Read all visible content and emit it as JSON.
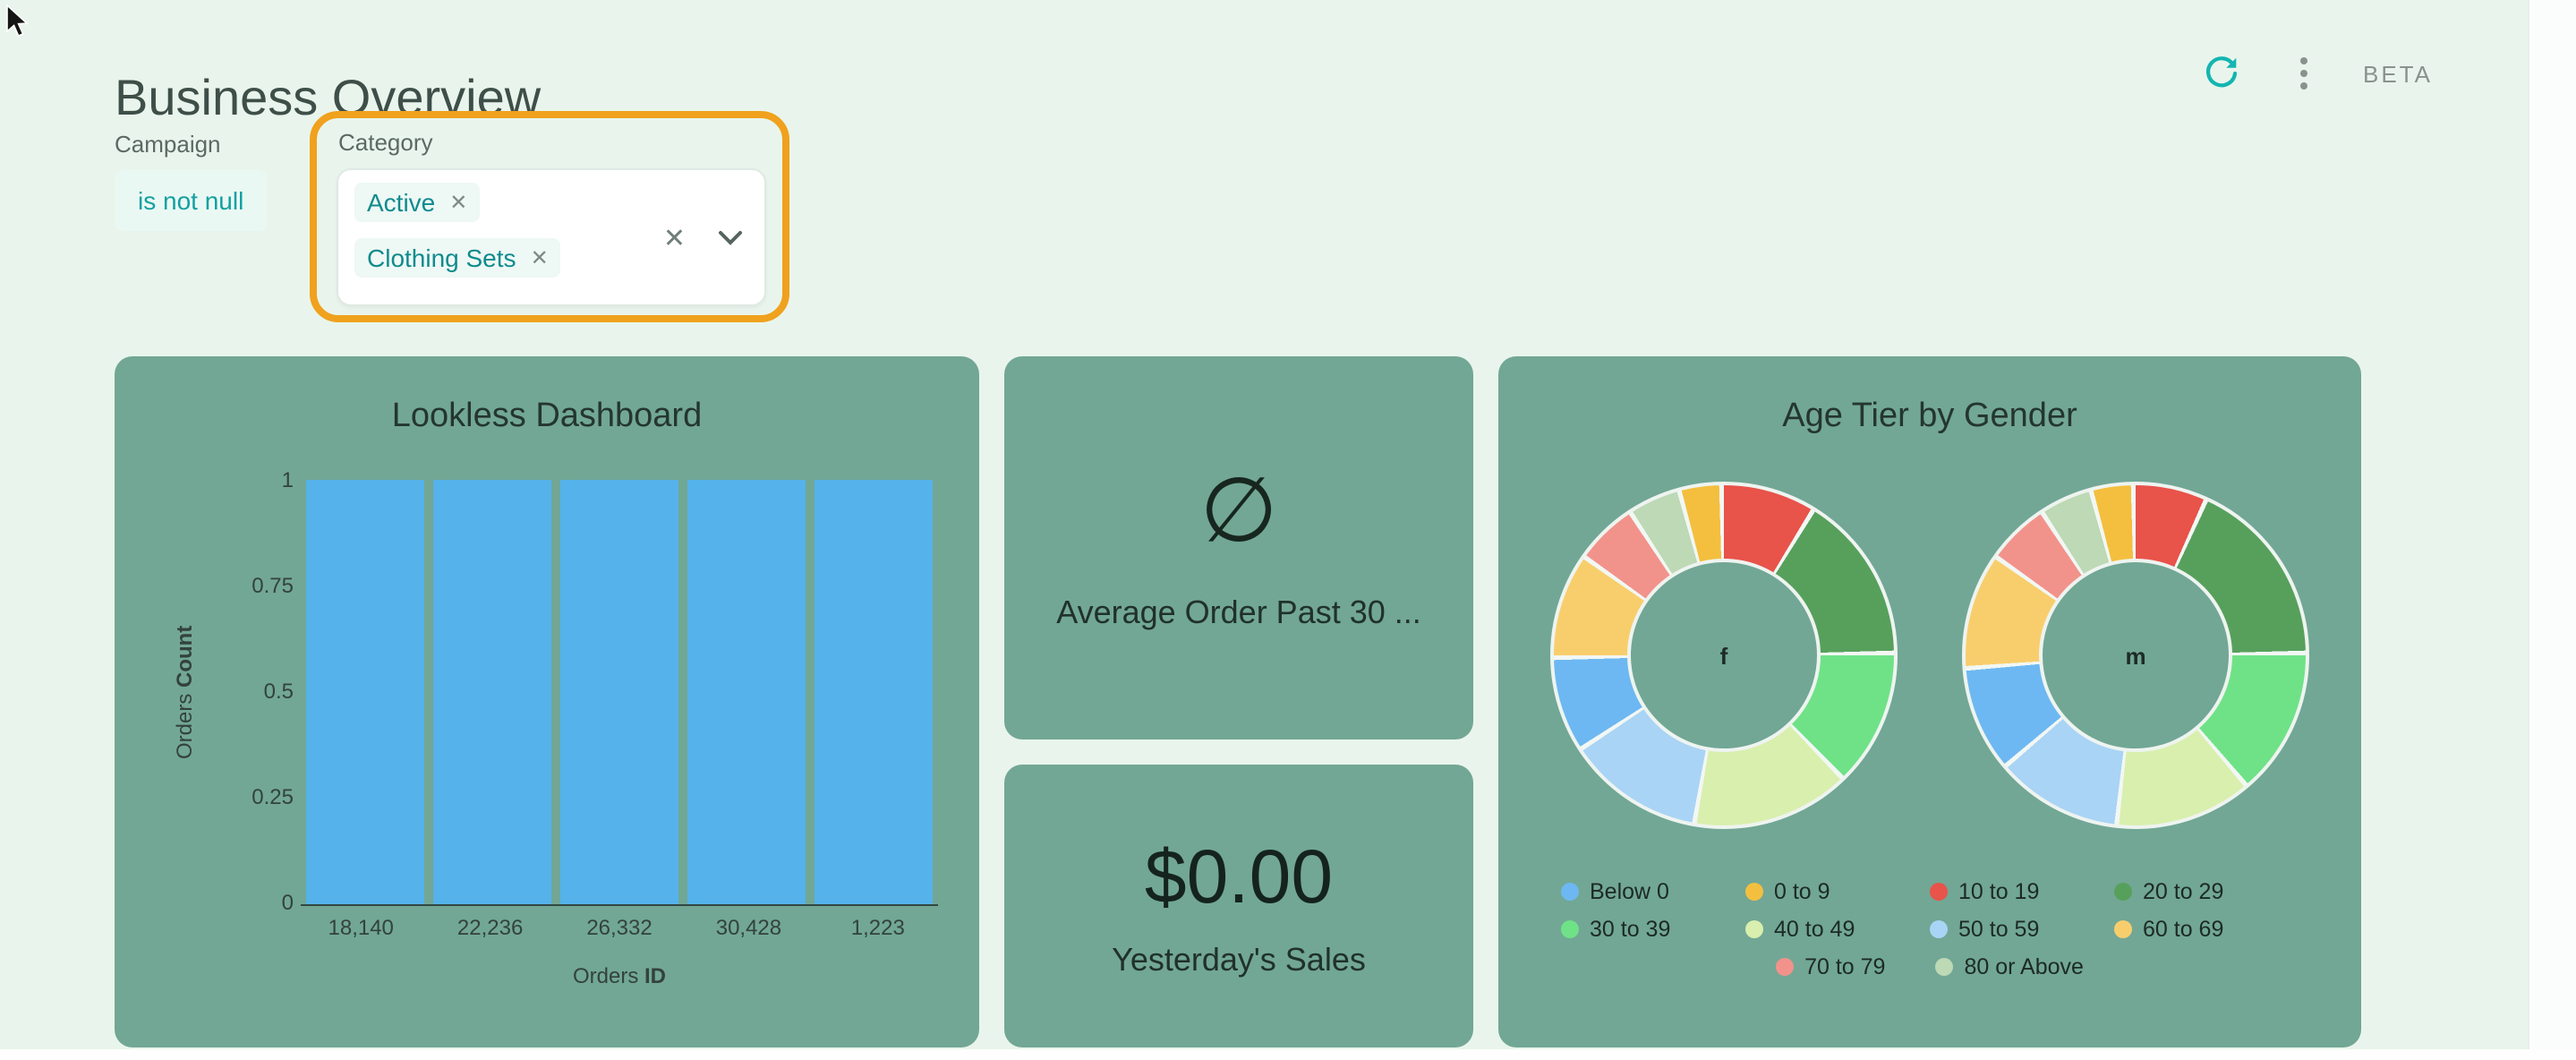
{
  "page": {
    "title": "Business Overview",
    "beta_label": "BETA"
  },
  "icons": {
    "refresh": "circular-arrow",
    "kebab_menu": "vertical-three-dots",
    "chip_close": "✕",
    "input_clear": "✕",
    "chevron_down": "⌄",
    "null_symbol": "∅",
    "cursor": "arrow-pointer"
  },
  "colors": {
    "page_bg": "#e9f5ec",
    "card_bg": "#72a795",
    "bar_blue": "#55b2ea",
    "teal_accent": "#14b5b1",
    "orange_highlight": "#f0a11d",
    "chip_teal_text": "#0f8b8d"
  },
  "filters": {
    "campaign": {
      "label": "Campaign",
      "value": "is not null"
    },
    "category": {
      "label": "Category",
      "chips": [
        "Active",
        "Clothing Sets"
      ]
    }
  },
  "cards": {
    "avg_order": {
      "symbol": "∅",
      "label": "Average Order Past 30 ..."
    },
    "yesterday": {
      "value": "$0.00",
      "label": "Yesterday's Sales"
    }
  },
  "chart_data": [
    {
      "type": "bar",
      "title": "Lookless Dashboard",
      "categories": [
        "18,140",
        "22,236",
        "26,332",
        "30,428",
        "1,223"
      ],
      "values": [
        1,
        1,
        1,
        1,
        1
      ],
      "xlabel": "Orders ID",
      "ylabel": "Orders Count",
      "axis": {
        "y_prefix": "Orders ",
        "y_bold": "Count",
        "x_prefix": "Orders ",
        "x_bold": "ID"
      },
      "ylim": [
        0,
        1
      ],
      "ytick_labels_top_down": [
        "1",
        "0.75",
        "0.5",
        "0.25",
        "0"
      ],
      "bar_color": "#55b2ea",
      "grid": false,
      "legend_position": "none"
    },
    {
      "type": "pie",
      "subtype": "donut-pair",
      "title": "Age Tier by Gender",
      "legend_position": "bottom",
      "legend": [
        {
          "label": "Below 0",
          "color": "#6db8f2"
        },
        {
          "label": "0 to 9",
          "color": "#f4bf3f"
        },
        {
          "label": "10 to 19",
          "color": "#e8534a"
        },
        {
          "label": "20 to 29",
          "color": "#57a05c"
        },
        {
          "label": "30 to 39",
          "color": "#6fe287"
        },
        {
          "label": "40 to 49",
          "color": "#d9efae"
        },
        {
          "label": "50 to 59",
          "color": "#a9d4f5"
        },
        {
          "label": "60 to 69",
          "color": "#f8ce6d"
        },
        {
          "label": "70 to 79",
          "color": "#f2938b"
        },
        {
          "label": "80 or Above",
          "color": "#bdd9b5"
        }
      ],
      "legend_rows": [
        [
          0,
          1,
          2,
          3
        ],
        [
          4,
          5,
          6,
          7
        ],
        [
          8,
          9
        ]
      ],
      "groups": [
        {
          "label": "f",
          "segments": [
            [
              "10 to 19",
              9
            ],
            [
              "20 to 29",
              16
            ],
            [
              "30 to 39",
              13
            ],
            [
              "40 to 49",
              15
            ],
            [
              "50 to 59",
              13
            ],
            [
              "Below 0",
              9
            ],
            [
              "60 to 69",
              10
            ],
            [
              "70 to 79",
              6
            ],
            [
              "80 or Above",
              5
            ],
            [
              "0 to 9",
              4
            ]
          ]
        },
        {
          "label": "m",
          "segments": [
            [
              "10 to 19",
              7
            ],
            [
              "20 to 29",
              18
            ],
            [
              "30 to 39",
              14
            ],
            [
              "40 to 49",
              13
            ],
            [
              "50 to 59",
              12
            ],
            [
              "Below 0",
              10
            ],
            [
              "60 to 69",
              11
            ],
            [
              "70 to 79",
              6
            ],
            [
              "80 or Above",
              5
            ],
            [
              "0 to 9",
              4
            ]
          ]
        }
      ]
    }
  ]
}
